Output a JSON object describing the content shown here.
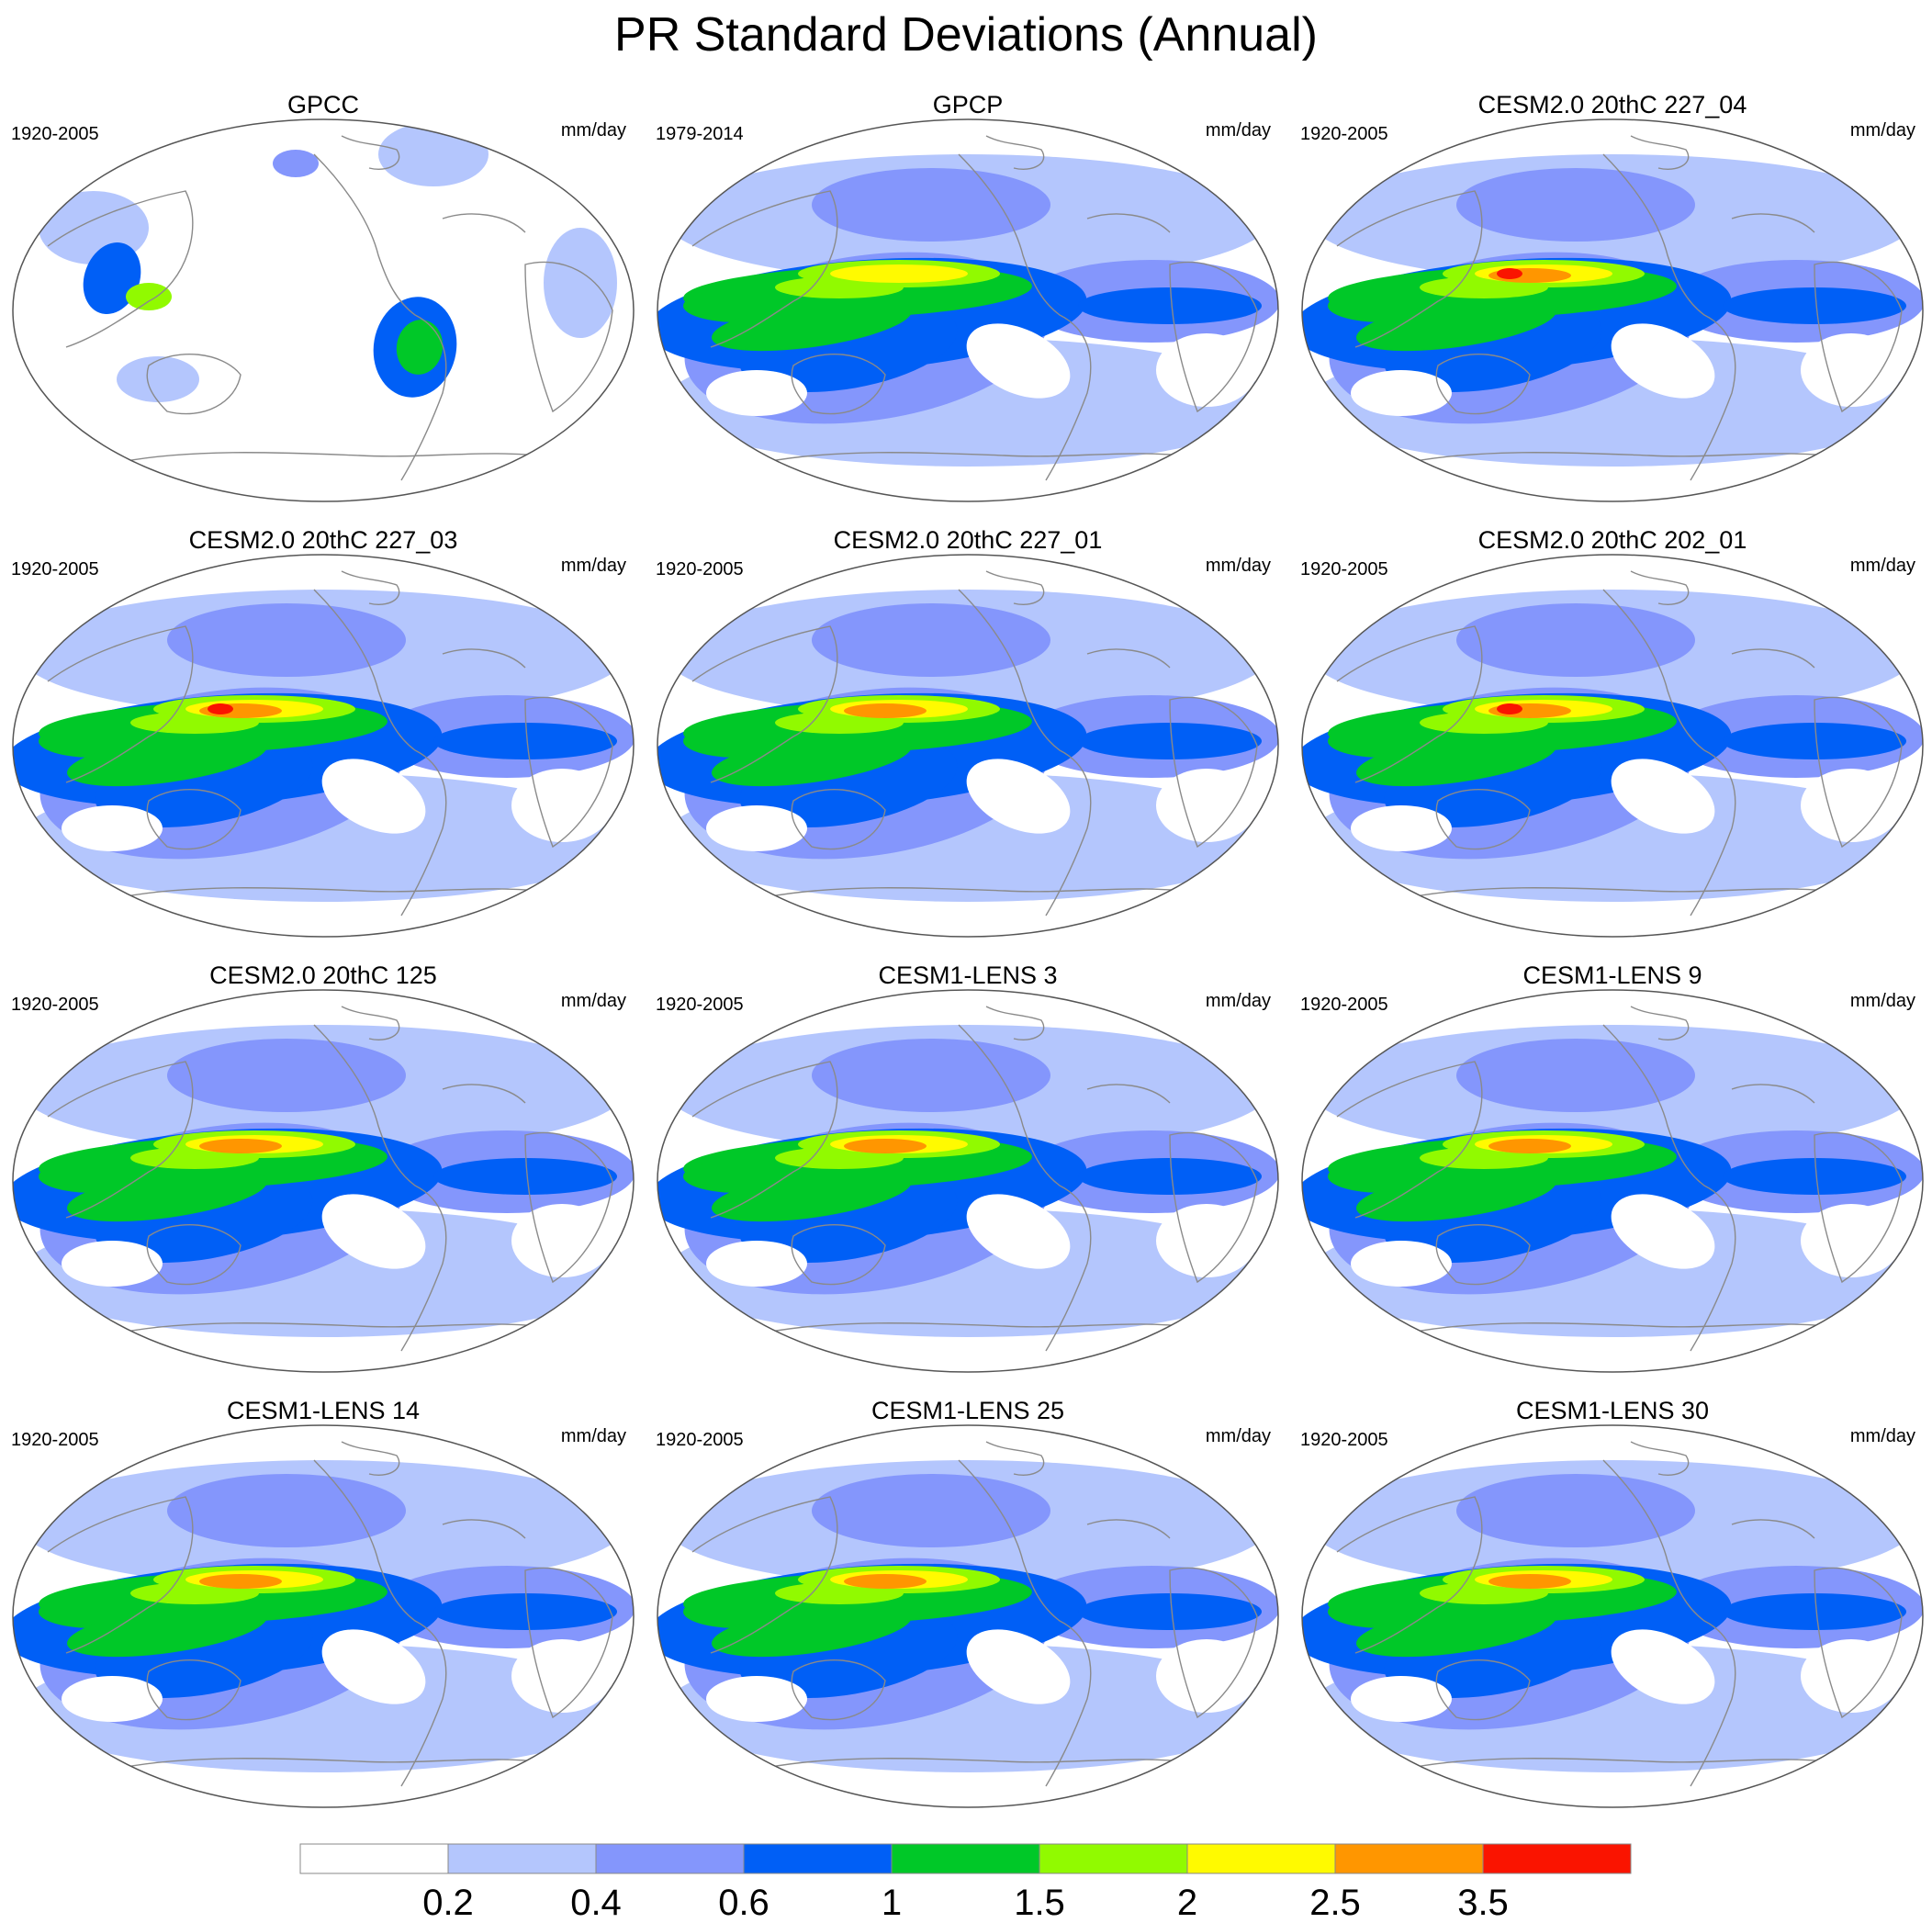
{
  "title": "PR Standard Deviations (Annual)",
  "panels": [
    {
      "title": "GPCC",
      "period": "1920-2005",
      "units": "mm/day",
      "kind": "obs-land",
      "peak": 2
    },
    {
      "title": "GPCP",
      "period": "1979-2014",
      "units": "mm/day",
      "kind": "obs",
      "peak": 6
    },
    {
      "title": "CESM2.0 20thC 227_04",
      "period": "1920-2005",
      "units": "mm/day",
      "kind": "model",
      "peak": 8
    },
    {
      "title": "CESM2.0 20thC 227_03",
      "period": "1920-2005",
      "units": "mm/day",
      "kind": "model",
      "peak": 8
    },
    {
      "title": "CESM2.0 20thC 227_01",
      "period": "1920-2005",
      "units": "mm/day",
      "kind": "model",
      "peak": 7
    },
    {
      "title": "CESM2.0 20thC 202_01",
      "period": "1920-2005",
      "units": "mm/day",
      "kind": "model",
      "peak": 8
    },
    {
      "title": "CESM2.0 20thC 125",
      "period": "1920-2005",
      "units": "mm/day",
      "kind": "model",
      "peak": 7
    },
    {
      "title": "CESM1-LENS 3",
      "period": "1920-2005",
      "units": "mm/day",
      "kind": "model",
      "peak": 7
    },
    {
      "title": "CESM1-LENS 9",
      "period": "1920-2005",
      "units": "mm/day",
      "kind": "model",
      "peak": 7
    },
    {
      "title": "CESM1-LENS 14",
      "period": "1920-2005",
      "units": "mm/day",
      "kind": "model",
      "peak": 7
    },
    {
      "title": "CESM1-LENS 25",
      "period": "1920-2005",
      "units": "mm/day",
      "kind": "model",
      "peak": 7
    },
    {
      "title": "CESM1-LENS 30",
      "period": "1920-2005",
      "units": "mm/day",
      "kind": "model",
      "peak": 7
    }
  ],
  "colorbar": {
    "colors": [
      "#ffffff",
      "#b4c6fd",
      "#8496fc",
      "#005ff6",
      "#00c828",
      "#91fa00",
      "#fffa00",
      "#ff9600",
      "#fa1400"
    ],
    "labels": [
      "0.2",
      "0.4",
      "0.6",
      "1",
      "1.5",
      "2",
      "2.5",
      "3.5"
    ]
  },
  "map_style": {
    "land_outline": "#8a8a8a",
    "border": "#555555"
  }
}
